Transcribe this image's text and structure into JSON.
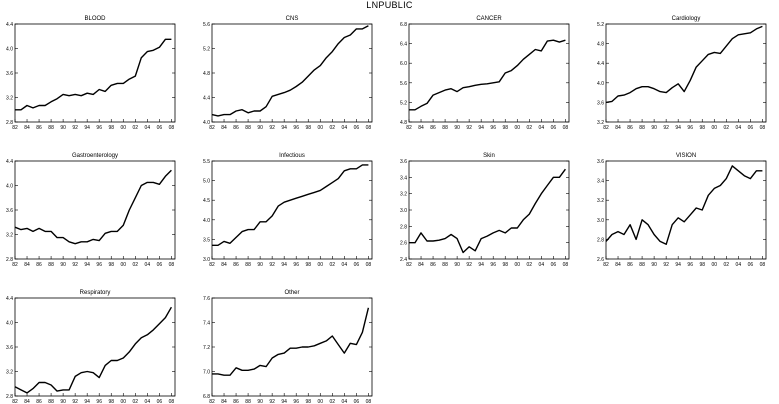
{
  "title": "LNPUBLIC",
  "x_ticks": [
    "82",
    "84",
    "86",
    "88",
    "90",
    "92",
    "94",
    "96",
    "98",
    "00",
    "02",
    "04",
    "06",
    "08"
  ],
  "chart_data": [
    {
      "type": "line",
      "title": "BLOOD",
      "ylim": [
        2.8,
        4.4
      ],
      "yticks": [
        "2.8",
        "3.2",
        "3.6",
        "4.0",
        "4.4"
      ],
      "x": [
        1982,
        1983,
        1984,
        1985,
        1986,
        1987,
        1988,
        1989,
        1990,
        1991,
        1992,
        1993,
        1994,
        1995,
        1996,
        1997,
        1998,
        1999,
        2000,
        2001,
        2002,
        2003,
        2004,
        2005,
        2006,
        2007,
        2008
      ],
      "values": [
        3.0,
        3.0,
        3.07,
        3.03,
        3.07,
        3.07,
        3.13,
        3.18,
        3.25,
        3.23,
        3.25,
        3.23,
        3.27,
        3.25,
        3.33,
        3.3,
        3.4,
        3.43,
        3.43,
        3.5,
        3.55,
        3.85,
        3.95,
        3.97,
        4.02,
        4.15,
        4.15
      ]
    },
    {
      "type": "line",
      "title": "CNS",
      "ylim": [
        4.0,
        5.6
      ],
      "yticks": [
        "4.0",
        "4.4",
        "4.8",
        "5.2",
        "5.6"
      ],
      "x": [
        1982,
        1983,
        1984,
        1985,
        1986,
        1987,
        1988,
        1989,
        1990,
        1991,
        1992,
        1993,
        1994,
        1995,
        1996,
        1997,
        1998,
        1999,
        2000,
        2001,
        2002,
        2003,
        2004,
        2005,
        2006,
        2007,
        2008
      ],
      "values": [
        4.12,
        4.1,
        4.12,
        4.12,
        4.18,
        4.2,
        4.15,
        4.18,
        4.18,
        4.25,
        4.42,
        4.45,
        4.48,
        4.52,
        4.58,
        4.65,
        4.75,
        4.85,
        4.92,
        5.05,
        5.15,
        5.28,
        5.38,
        5.42,
        5.52,
        5.52,
        5.57
      ]
    },
    {
      "type": "line",
      "title": "CANCER",
      "ylim": [
        4.8,
        6.8
      ],
      "yticks": [
        "4.8",
        "5.2",
        "5.6",
        "6.0",
        "6.4",
        "6.8"
      ],
      "x": [
        1982,
        1983,
        1984,
        1985,
        1986,
        1987,
        1988,
        1989,
        1990,
        1991,
        1992,
        1993,
        1994,
        1995,
        1996,
        1997,
        1998,
        1999,
        2000,
        2001,
        2002,
        2003,
        2004,
        2005,
        2006,
        2007,
        2008
      ],
      "values": [
        5.05,
        5.05,
        5.12,
        5.18,
        5.35,
        5.4,
        5.45,
        5.48,
        5.42,
        5.5,
        5.52,
        5.55,
        5.57,
        5.58,
        5.6,
        5.62,
        5.8,
        5.85,
        5.95,
        6.08,
        6.18,
        6.28,
        6.25,
        6.45,
        6.47,
        6.43,
        6.47
      ]
    },
    {
      "type": "line",
      "title": "Cardiology",
      "ylim": [
        3.2,
        5.2
      ],
      "yticks": [
        "3.2",
        "3.6",
        "4.0",
        "4.4",
        "4.8",
        "5.2"
      ],
      "x": [
        1982,
        1983,
        1984,
        1985,
        1986,
        1987,
        1988,
        1989,
        1990,
        1991,
        1992,
        1993,
        1994,
        1995,
        1996,
        1997,
        1998,
        1999,
        2000,
        2001,
        2002,
        2003,
        2004,
        2005,
        2006,
        2007,
        2008
      ],
      "values": [
        3.6,
        3.62,
        3.73,
        3.75,
        3.8,
        3.88,
        3.92,
        3.92,
        3.88,
        3.82,
        3.8,
        3.9,
        3.98,
        3.82,
        4.05,
        4.32,
        4.45,
        4.58,
        4.62,
        4.6,
        4.75,
        4.9,
        4.98,
        5.0,
        5.02,
        5.1,
        5.15
      ]
    },
    {
      "type": "line",
      "title": "Gastroenterology",
      "ylim": [
        2.8,
        4.4
      ],
      "yticks": [
        "2.8",
        "3.2",
        "3.6",
        "4.0",
        "4.4"
      ],
      "x": [
        1982,
        1983,
        1984,
        1985,
        1986,
        1987,
        1988,
        1989,
        1990,
        1991,
        1992,
        1993,
        1994,
        1995,
        1996,
        1997,
        1998,
        1999,
        2000,
        2001,
        2002,
        2003,
        2004,
        2005,
        2006,
        2007,
        2008
      ],
      "values": [
        3.32,
        3.28,
        3.3,
        3.25,
        3.3,
        3.25,
        3.25,
        3.15,
        3.15,
        3.08,
        3.05,
        3.08,
        3.08,
        3.12,
        3.1,
        3.22,
        3.25,
        3.25,
        3.35,
        3.6,
        3.8,
        4.0,
        4.05,
        4.05,
        4.02,
        4.15,
        4.25
      ]
    },
    {
      "type": "line",
      "title": "Infectious",
      "ylim": [
        3.0,
        5.5
      ],
      "yticks": [
        "3.0",
        "3.5",
        "4.0",
        "4.5",
        "5.0",
        "5.5"
      ],
      "x": [
        1982,
        1983,
        1984,
        1985,
        1986,
        1987,
        1988,
        1989,
        1990,
        1991,
        1992,
        1993,
        1994,
        1995,
        1996,
        1997,
        1998,
        1999,
        2000,
        2001,
        2002,
        2003,
        2004,
        2005,
        2006,
        2007,
        2008
      ],
      "values": [
        3.35,
        3.35,
        3.45,
        3.4,
        3.55,
        3.7,
        3.75,
        3.75,
        3.95,
        3.95,
        4.1,
        4.35,
        4.45,
        4.5,
        4.55,
        4.6,
        4.65,
        4.7,
        4.75,
        4.85,
        4.95,
        5.05,
        5.25,
        5.3,
        5.3,
        5.4,
        5.4
      ]
    },
    {
      "type": "line",
      "title": "Skin",
      "ylim": [
        2.4,
        3.6
      ],
      "yticks": [
        "2.4",
        "2.6",
        "2.8",
        "3.0",
        "3.2",
        "3.4",
        "3.6"
      ],
      "x": [
        1982,
        1983,
        1984,
        1985,
        1986,
        1987,
        1988,
        1989,
        1990,
        1991,
        1992,
        1993,
        1994,
        1995,
        1996,
        1997,
        1998,
        1999,
        2000,
        2001,
        2002,
        2003,
        2004,
        2005,
        2006,
        2007,
        2008
      ],
      "values": [
        2.6,
        2.6,
        2.72,
        2.62,
        2.62,
        2.63,
        2.65,
        2.7,
        2.65,
        2.48,
        2.55,
        2.5,
        2.65,
        2.68,
        2.72,
        2.75,
        2.72,
        2.78,
        2.78,
        2.88,
        2.95,
        3.08,
        3.2,
        3.3,
        3.4,
        3.4,
        3.5
      ]
    },
    {
      "type": "line",
      "title": "VISION",
      "ylim": [
        2.6,
        3.6
      ],
      "yticks": [
        "2.6",
        "2.8",
        "3.0",
        "3.2",
        "3.4",
        "3.6"
      ],
      "x": [
        1982,
        1983,
        1984,
        1985,
        1986,
        1987,
        1988,
        1989,
        1990,
        1991,
        1992,
        1993,
        1994,
        1995,
        1996,
        1997,
        1998,
        1999,
        2000,
        2001,
        2002,
        2003,
        2004,
        2005,
        2006,
        2007,
        2008
      ],
      "values": [
        2.78,
        2.85,
        2.88,
        2.85,
        2.95,
        2.8,
        3.0,
        2.95,
        2.85,
        2.78,
        2.75,
        2.95,
        3.02,
        2.98,
        3.05,
        3.12,
        3.1,
        3.25,
        3.32,
        3.35,
        3.42,
        3.55,
        3.5,
        3.45,
        3.42,
        3.5,
        3.5
      ]
    },
    {
      "type": "line",
      "title": "Respiratory",
      "ylim": [
        2.8,
        4.4
      ],
      "yticks": [
        "2.8",
        "3.2",
        "3.6",
        "4.0",
        "4.4"
      ],
      "x": [
        1982,
        1983,
        1984,
        1985,
        1986,
        1987,
        1988,
        1989,
        1990,
        1991,
        1992,
        1993,
        1994,
        1995,
        1996,
        1997,
        1998,
        1999,
        2000,
        2001,
        2002,
        2003,
        2004,
        2005,
        2006,
        2007,
        2008
      ],
      "values": [
        2.95,
        2.9,
        2.85,
        2.92,
        3.02,
        3.02,
        2.98,
        2.88,
        2.9,
        2.9,
        3.12,
        3.18,
        3.2,
        3.18,
        3.1,
        3.3,
        3.38,
        3.38,
        3.42,
        3.52,
        3.65,
        3.75,
        3.8,
        3.88,
        3.98,
        4.08,
        4.25
      ]
    },
    {
      "type": "line",
      "title": "Other",
      "ylim": [
        6.8,
        7.6
      ],
      "yticks": [
        "6.8",
        "7.0",
        "7.2",
        "7.4",
        "7.6"
      ],
      "x": [
        1982,
        1983,
        1984,
        1985,
        1986,
        1987,
        1988,
        1989,
        1990,
        1991,
        1992,
        1993,
        1994,
        1995,
        1996,
        1997,
        1998,
        1999,
        2000,
        2001,
        2002,
        2003,
        2004,
        2005,
        2006,
        2007,
        2008
      ],
      "values": [
        6.98,
        6.98,
        6.97,
        6.97,
        7.03,
        7.01,
        7.01,
        7.02,
        7.05,
        7.04,
        7.11,
        7.14,
        7.15,
        7.19,
        7.19,
        7.2,
        7.2,
        7.21,
        7.23,
        7.25,
        7.29,
        7.22,
        7.15,
        7.23,
        7.22,
        7.32,
        7.52
      ]
    }
  ]
}
